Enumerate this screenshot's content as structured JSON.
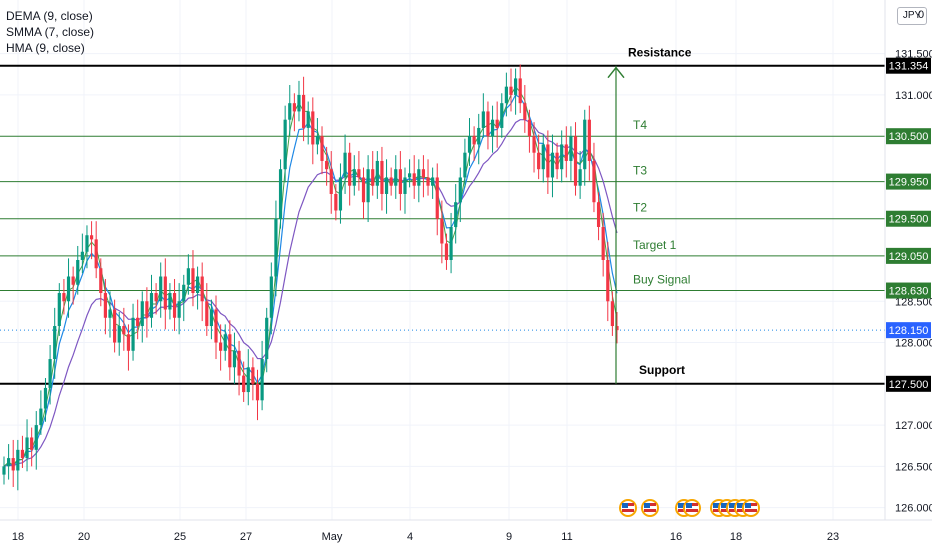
{
  "header": {
    "indicators": [
      "DEMA (9, close)",
      "SMMA (7, close)",
      "HMA (9, close)"
    ],
    "currency": "JPY",
    "currency_suffix": "0"
  },
  "chart_data": {
    "type": "candlestick",
    "title": "",
    "xlabel": "",
    "ylabel": "",
    "ylim": [
      125.85,
      132.15
    ],
    "x_tick_labels": [
      "18",
      "20",
      "25",
      "27",
      "May",
      "4",
      "9",
      "11",
      "16",
      "18",
      "23"
    ],
    "y_tick_labels": [
      "131.500",
      "131.000",
      "128.500",
      "128.000",
      "127.000",
      "126.500",
      "126.000"
    ],
    "y_tick_values": [
      131.5,
      131.0,
      128.5,
      128.0,
      127.0,
      126.5,
      126.0
    ],
    "levels": [
      {
        "label": "Resistance",
        "value": 131.354,
        "badge": "131.354",
        "kind": "resistance"
      },
      {
        "label": "T4",
        "value": 130.5,
        "badge": "130.500",
        "kind": "target"
      },
      {
        "label": "T3",
        "value": 129.95,
        "badge": "129.950",
        "kind": "target"
      },
      {
        "label": "T2",
        "value": 129.5,
        "badge": "129.500",
        "kind": "target"
      },
      {
        "label": "Target 1",
        "value": 129.05,
        "badge": "129.050",
        "kind": "target"
      },
      {
        "label": "Buy Signal",
        "value": 128.63,
        "badge": "128.630",
        "kind": "target"
      },
      {
        "label": "Support",
        "value": 127.5,
        "badge": "127.500",
        "kind": "support"
      }
    ],
    "current_price": {
      "value": 128.15,
      "badge": "128.150"
    },
    "series": [
      {
        "name": "DEMA (9, close)"
      },
      {
        "name": "SMMA (7, close)"
      },
      {
        "name": "HMA (9, close)"
      }
    ],
    "closes": [
      126.5,
      126.6,
      126.45,
      126.7,
      126.6,
      126.85,
      126.7,
      127.0,
      127.2,
      127.45,
      127.8,
      128.2,
      128.6,
      128.5,
      128.8,
      128.7,
      129.0,
      129.1,
      129.3,
      129.25,
      128.9,
      128.6,
      128.3,
      128.4,
      128.0,
      128.2,
      128.1,
      127.9,
      128.3,
      128.2,
      128.5,
      128.3,
      128.6,
      128.5,
      128.8,
      128.4,
      128.6,
      128.3,
      128.5,
      128.7,
      128.9,
      128.6,
      128.8,
      128.5,
      128.2,
      128.4,
      128.0,
      127.9,
      128.1,
      127.7,
      127.9,
      127.6,
      127.4,
      127.7,
      127.5,
      127.3,
      127.8,
      128.3,
      128.8,
      129.5,
      130.1,
      130.7,
      130.9,
      130.8,
      131.0,
      130.6,
      130.8,
      130.4,
      130.5,
      130.2,
      130.1,
      129.8,
      129.6,
      130.0,
      130.3,
      129.9,
      130.1,
      130.0,
      129.7,
      130.1,
      129.9,
      130.2,
      129.8,
      130.0,
      129.9,
      130.1,
      129.8,
      130.0,
      130.05,
      129.9,
      130.1,
      130.0,
      129.9,
      130.0,
      129.5,
      129.2,
      129.0,
      129.4,
      129.7,
      130.0,
      130.3,
      130.5,
      130.4,
      130.6,
      130.8,
      130.5,
      130.7,
      130.6,
      130.9,
      131.1,
      131.0,
      131.2,
      130.9,
      130.7,
      130.5,
      130.3,
      130.1,
      130.4,
      130.0,
      130.3,
      130.1,
      130.4,
      130.2,
      130.5,
      129.9,
      130.1,
      130.7,
      130.2,
      129.7,
      129.4,
      129.0,
      128.5,
      128.2,
      128.15
    ],
    "annotations": [
      {
        "type": "arrow",
        "direction": "up",
        "from": 127.5,
        "to": 131.354,
        "color": "#2e7d32"
      }
    ],
    "colors": {
      "up": "#089981",
      "down": "#f23645",
      "level": "#2e7d32",
      "dema": "#1e88e5",
      "smma": "#7e57c2",
      "hma": "#43a047"
    },
    "grid": true
  }
}
